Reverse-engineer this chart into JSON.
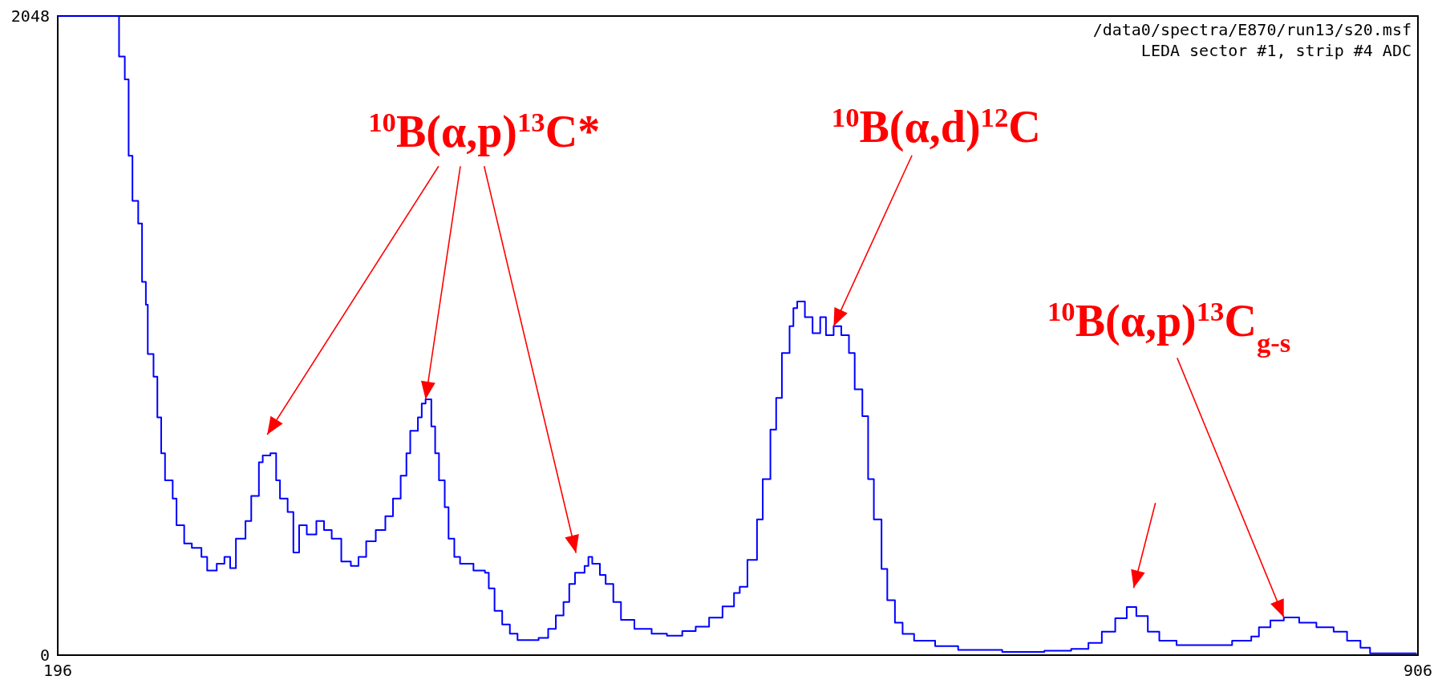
{
  "chart_data": {
    "type": "step",
    "title": "/data0/spectra/E870/run13/s20.msf",
    "subtitle": "LEDA sector #1, strip #4 ADC",
    "annotations": [
      {
        "text": "$^{10}$B(α,p)$^{13}$C*",
        "x": 388,
        "y": 820
      },
      {
        "text": "$^{10}$B(α,d)$^{12}$C",
        "x": 601,
        "y": 1054
      },
      {
        "text": "$^{10}$B(α,p)$^{13}$C$_{g-s}$",
        "x": 836,
        "y": 121
      }
    ],
    "x": [
      196,
      226,
      228,
      231,
      233,
      235,
      238,
      240,
      242,
      243,
      246,
      248,
      250,
      252,
      256,
      258,
      262,
      266,
      271,
      274,
      279,
      283,
      286,
      289,
      294,
      297,
      301,
      303,
      307,
      310,
      312,
      316,
      319,
      322,
      326,
      331,
      335,
      339,
      344,
      349,
      353,
      357,
      362,
      367,
      371,
      375,
      378,
      380,
      384,
      386,
      388,
      391,
      393,
      395,
      398,
      400,
      403,
      406,
      413,
      419,
      421,
      424,
      428,
      432,
      436,
      442,
      447,
      452,
      456,
      460,
      463,
      466,
      471,
      473,
      475,
      479,
      482,
      486,
      490,
      497,
      506,
      514,
      522,
      529,
      536,
      543,
      549,
      552,
      556,
      561,
      564,
      568,
      571,
      574,
      578,
      580,
      582,
      586,
      590,
      594,
      597,
      601,
      605,
      609,
      612,
      616,
      619,
      622,
      626,
      629,
      633,
      637,
      643,
      654,
      666,
      689,
      711,
      725,
      734,
      741,
      748,
      754,
      759,
      765,
      771,
      780,
      798,
      809,
      819,
      823,
      829,
      836,
      844,
      853,
      862,
      869,
      876,
      881,
      905
    ],
    "values": [
      2048,
      2048,
      1918,
      1845,
      1600,
      1456,
      1383,
      1196,
      1123,
      965,
      892,
      762,
      647,
      560,
      502,
      416,
      358,
      344,
      315,
      271,
      293,
      315,
      279,
      373,
      430,
      510,
      618,
      640,
      647,
      560,
      502,
      459,
      329,
      416,
      387,
      430,
      401,
      373,
      300,
      286,
      315,
      365,
      401,
      445,
      502,
      575,
      647,
      719,
      762,
      806,
      820,
      733,
      647,
      560,
      474,
      373,
      315,
      293,
      271,
      264,
      214,
      142,
      98,
      69,
      48,
      48,
      55,
      84,
      127,
      170,
      228,
      264,
      286,
      315,
      293,
      257,
      228,
      170,
      113,
      84,
      69,
      62,
      77,
      91,
      120,
      156,
      199,
      219,
      305,
      435,
      564,
      723,
      824,
      968,
      1054,
      1112,
      1133,
      1083,
      1032,
      1083,
      1025,
      1054,
      1025,
      968,
      852,
      766,
      564,
      435,
      276,
      176,
      104,
      68,
      46,
      29,
      17,
      10,
      14,
      20,
      39,
      75,
      118,
      154,
      125,
      75,
      46,
      32,
      32,
      46,
      60,
      89,
      111,
      121,
      104,
      89,
      75,
      46,
      24,
      6,
      3
    ],
    "color": "#0000ff",
    "xlim": [
      196,
      906
    ],
    "xticks": [
      196,
      906
    ],
    "ylim": [
      0,
      2048
    ],
    "yticks": [
      0,
      2048
    ]
  }
}
